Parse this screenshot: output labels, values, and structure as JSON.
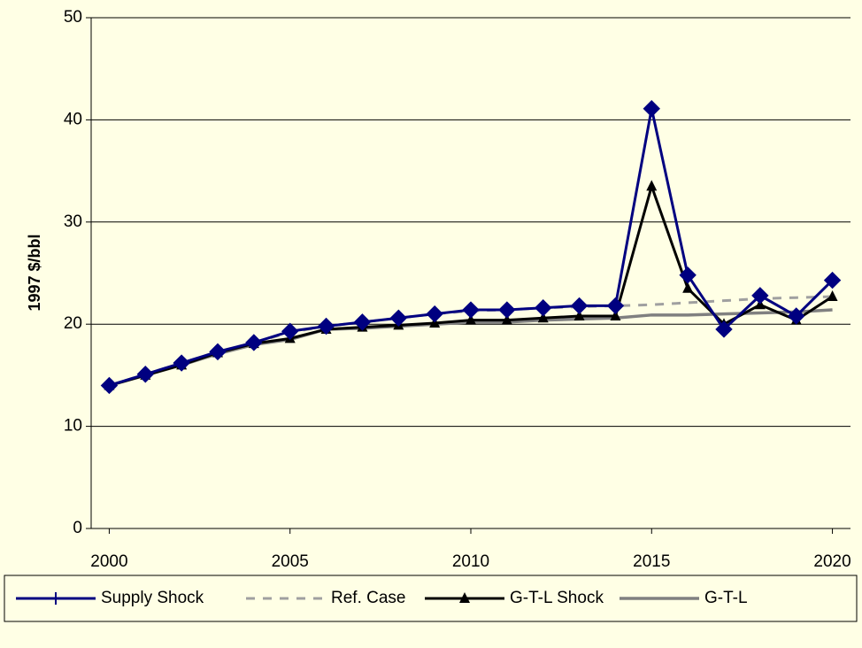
{
  "chart_data": {
    "type": "line",
    "y_label": "1997 $/bbl",
    "x": [
      2000,
      2001,
      2002,
      2003,
      2004,
      2005,
      2006,
      2007,
      2008,
      2009,
      2010,
      2011,
      2012,
      2013,
      2014,
      2015,
      2016,
      2017,
      2018,
      2019,
      2020
    ],
    "series": [
      {
        "name": "Supply Shock",
        "color": "#000080",
        "values": [
          14.0,
          15.1,
          16.2,
          17.3,
          18.2,
          19.3,
          19.8,
          20.2,
          20.6,
          21.0,
          21.4,
          21.4,
          21.6,
          21.8,
          21.8,
          41.1,
          24.8,
          19.5,
          22.8,
          20.8,
          24.3
        ]
      },
      {
        "name": "Ref. Case",
        "color": "#A0A0A0",
        "values": [
          14.0,
          15.1,
          16.2,
          17.3,
          18.2,
          19.2,
          19.8,
          20.2,
          20.6,
          21.0,
          21.3,
          21.4,
          21.6,
          21.7,
          21.8,
          21.9,
          22.1,
          22.3,
          22.5,
          22.6,
          22.7
        ]
      },
      {
        "name": "G-T-L Shock",
        "color": "#000000",
        "values": [
          14.0,
          15.0,
          16.0,
          17.2,
          18.1,
          18.6,
          19.5,
          19.7,
          19.9,
          20.1,
          20.4,
          20.4,
          20.6,
          20.8,
          20.8,
          33.5,
          23.5,
          20.0,
          21.9,
          20.4,
          22.7
        ]
      },
      {
        "name": "G-T-L",
        "color": "#808080",
        "values": [
          14.0,
          15.0,
          16.0,
          17.1,
          18.0,
          18.5,
          19.5,
          19.6,
          19.8,
          20.0,
          20.2,
          20.2,
          20.4,
          20.5,
          20.6,
          20.9,
          20.9,
          21.0,
          21.1,
          21.2,
          21.4
        ]
      }
    ],
    "xlim": [
      1999.5,
      2020.5
    ],
    "xticks": [
      2000,
      2005,
      2010,
      2015,
      2020
    ],
    "ylim": [
      0,
      50
    ],
    "yticks": [
      0,
      10,
      20,
      30,
      40,
      50
    ],
    "grid": true
  }
}
